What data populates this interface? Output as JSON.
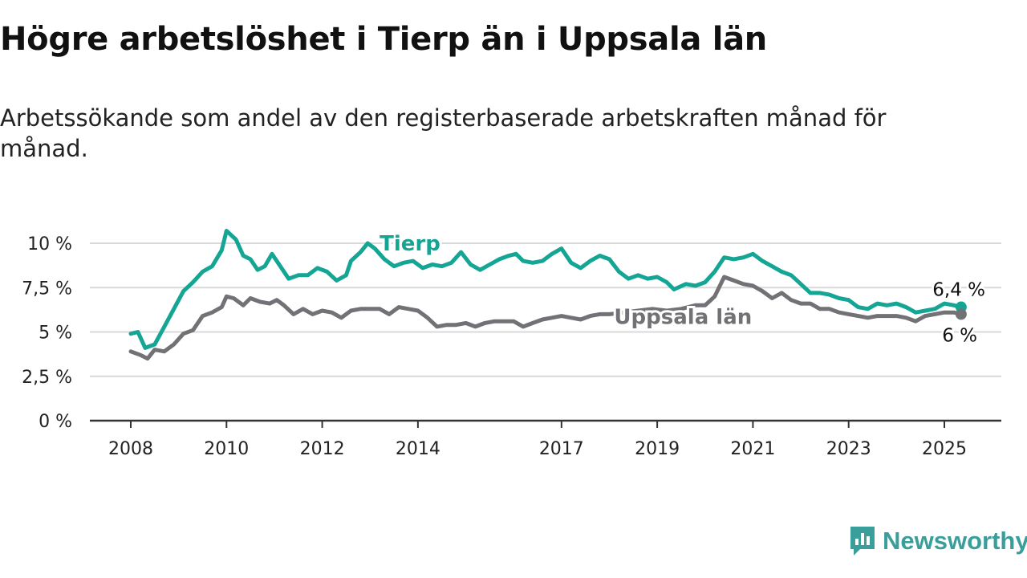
{
  "title": "Högre arbetslöshet i Tierp än i Uppsala län",
  "subtitle": "Arbetssökande som andel av den registerbaserade arbetskraften månad för månad.",
  "brand": {
    "name": "Newsworthy",
    "logo_icon": "bar-chart-speech-bubble-icon"
  },
  "colors": {
    "tierp": "#14a595",
    "uppsala": "#727276",
    "grid": "#d9d9d9",
    "axis": "#333333",
    "brand": "#3a9e9a"
  },
  "chart_data": {
    "type": "line",
    "xlim": [
      2008,
      2025.6
    ],
    "ylim": [
      0,
      11
    ],
    "x_ticks": [
      {
        "value": 2008,
        "label": "2008"
      },
      {
        "value": 2010,
        "label": "2010"
      },
      {
        "value": 2012,
        "label": "2012"
      },
      {
        "value": 2014,
        "label": "2014"
      },
      {
        "value": 2017,
        "label": "2017"
      },
      {
        "value": 2019,
        "label": "2019"
      },
      {
        "value": 2021,
        "label": "2021"
      },
      {
        "value": 2023,
        "label": "2023"
      },
      {
        "value": 2025,
        "label": "2025"
      }
    ],
    "y_ticks": [
      {
        "value": 0,
        "label": "0 %"
      },
      {
        "value": 2.5,
        "label": "2,5 %"
      },
      {
        "value": 5,
        "label": "5 %"
      },
      {
        "value": 7.5,
        "label": "7,5 %"
      },
      {
        "value": 10,
        "label": "10 %"
      }
    ],
    "grid": true,
    "series": [
      {
        "name": "Tierp",
        "end_label": "6,4 %",
        "points": [
          [
            2008.0,
            4.9
          ],
          [
            2008.15,
            5.0
          ],
          [
            2008.3,
            4.1
          ],
          [
            2008.5,
            4.3
          ],
          [
            2008.7,
            5.3
          ],
          [
            2008.9,
            6.3
          ],
          [
            2009.1,
            7.3
          ],
          [
            2009.3,
            7.8
          ],
          [
            2009.5,
            8.4
          ],
          [
            2009.7,
            8.7
          ],
          [
            2009.9,
            9.6
          ],
          [
            2010.0,
            10.7
          ],
          [
            2010.2,
            10.2
          ],
          [
            2010.35,
            9.3
          ],
          [
            2010.5,
            9.1
          ],
          [
            2010.65,
            8.5
          ],
          [
            2010.8,
            8.7
          ],
          [
            2010.95,
            9.4
          ],
          [
            2011.1,
            8.8
          ],
          [
            2011.3,
            8.0
          ],
          [
            2011.5,
            8.2
          ],
          [
            2011.7,
            8.2
          ],
          [
            2011.9,
            8.6
          ],
          [
            2012.1,
            8.4
          ],
          [
            2012.3,
            7.9
          ],
          [
            2012.5,
            8.2
          ],
          [
            2012.6,
            9.0
          ],
          [
            2012.8,
            9.5
          ],
          [
            2012.95,
            10.0
          ],
          [
            2013.1,
            9.7
          ],
          [
            2013.3,
            9.1
          ],
          [
            2013.5,
            8.7
          ],
          [
            2013.7,
            8.9
          ],
          [
            2013.9,
            9.0
          ],
          [
            2014.1,
            8.6
          ],
          [
            2014.3,
            8.8
          ],
          [
            2014.5,
            8.7
          ],
          [
            2014.7,
            8.9
          ],
          [
            2014.9,
            9.5
          ],
          [
            2015.1,
            8.8
          ],
          [
            2015.3,
            8.5
          ],
          [
            2015.5,
            8.8
          ],
          [
            2015.7,
            9.1
          ],
          [
            2015.9,
            9.3
          ],
          [
            2016.05,
            9.4
          ],
          [
            2016.2,
            9.0
          ],
          [
            2016.4,
            8.9
          ],
          [
            2016.6,
            9.0
          ],
          [
            2016.8,
            9.4
          ],
          [
            2017.0,
            9.7
          ],
          [
            2017.2,
            8.9
          ],
          [
            2017.4,
            8.6
          ],
          [
            2017.6,
            9.0
          ],
          [
            2017.8,
            9.3
          ],
          [
            2018.0,
            9.1
          ],
          [
            2018.2,
            8.4
          ],
          [
            2018.4,
            8.0
          ],
          [
            2018.6,
            8.2
          ],
          [
            2018.8,
            8.0
          ],
          [
            2019.0,
            8.1
          ],
          [
            2019.2,
            7.8
          ],
          [
            2019.35,
            7.4
          ],
          [
            2019.6,
            7.7
          ],
          [
            2019.8,
            7.6
          ],
          [
            2020.0,
            7.8
          ],
          [
            2020.2,
            8.4
          ],
          [
            2020.4,
            9.2
          ],
          [
            2020.6,
            9.1
          ],
          [
            2020.8,
            9.2
          ],
          [
            2021.0,
            9.4
          ],
          [
            2021.2,
            9.0
          ],
          [
            2021.4,
            8.7
          ],
          [
            2021.6,
            8.4
          ],
          [
            2021.8,
            8.2
          ],
          [
            2022.0,
            7.7
          ],
          [
            2022.2,
            7.2
          ],
          [
            2022.4,
            7.2
          ],
          [
            2022.6,
            7.1
          ],
          [
            2022.8,
            6.9
          ],
          [
            2023.0,
            6.8
          ],
          [
            2023.2,
            6.4
          ],
          [
            2023.4,
            6.3
          ],
          [
            2023.6,
            6.6
          ],
          [
            2023.8,
            6.5
          ],
          [
            2024.0,
            6.6
          ],
          [
            2024.2,
            6.4
          ],
          [
            2024.4,
            6.1
          ],
          [
            2024.6,
            6.2
          ],
          [
            2024.8,
            6.3
          ],
          [
            2025.0,
            6.6
          ],
          [
            2025.2,
            6.5
          ],
          [
            2025.35,
            6.4
          ]
        ]
      },
      {
        "name": "Uppsala län",
        "end_label": "6 %",
        "points": [
          [
            2008.0,
            3.9
          ],
          [
            2008.2,
            3.7
          ],
          [
            2008.35,
            3.5
          ],
          [
            2008.5,
            4.0
          ],
          [
            2008.7,
            3.9
          ],
          [
            2008.9,
            4.3
          ],
          [
            2009.1,
            4.9
          ],
          [
            2009.3,
            5.1
          ],
          [
            2009.5,
            5.9
          ],
          [
            2009.7,
            6.1
          ],
          [
            2009.9,
            6.4
          ],
          [
            2010.0,
            7.0
          ],
          [
            2010.15,
            6.9
          ],
          [
            2010.35,
            6.5
          ],
          [
            2010.5,
            6.9
          ],
          [
            2010.7,
            6.7
          ],
          [
            2010.9,
            6.6
          ],
          [
            2011.05,
            6.8
          ],
          [
            2011.2,
            6.5
          ],
          [
            2011.4,
            6.0
          ],
          [
            2011.6,
            6.3
          ],
          [
            2011.8,
            6.0
          ],
          [
            2012.0,
            6.2
          ],
          [
            2012.2,
            6.1
          ],
          [
            2012.4,
            5.8
          ],
          [
            2012.6,
            6.2
          ],
          [
            2012.8,
            6.3
          ],
          [
            2013.0,
            6.3
          ],
          [
            2013.2,
            6.3
          ],
          [
            2013.4,
            6.0
          ],
          [
            2013.6,
            6.4
          ],
          [
            2013.8,
            6.3
          ],
          [
            2014.0,
            6.2
          ],
          [
            2014.2,
            5.8
          ],
          [
            2014.4,
            5.3
          ],
          [
            2014.6,
            5.4
          ],
          [
            2014.8,
            5.4
          ],
          [
            2015.0,
            5.5
          ],
          [
            2015.2,
            5.3
          ],
          [
            2015.4,
            5.5
          ],
          [
            2015.6,
            5.6
          ],
          [
            2015.8,
            5.6
          ],
          [
            2016.0,
            5.6
          ],
          [
            2016.2,
            5.3
          ],
          [
            2016.4,
            5.5
          ],
          [
            2016.6,
            5.7
          ],
          [
            2016.8,
            5.8
          ],
          [
            2017.0,
            5.9
          ],
          [
            2017.2,
            5.8
          ],
          [
            2017.4,
            5.7
          ],
          [
            2017.6,
            5.9
          ],
          [
            2017.8,
            6.0
          ],
          [
            2018.0,
            6.0
          ],
          [
            2018.3,
            6.1
          ],
          [
            2018.6,
            6.2
          ],
          [
            2018.9,
            6.3
          ],
          [
            2019.2,
            6.2
          ],
          [
            2019.5,
            6.3
          ],
          [
            2019.8,
            6.5
          ],
          [
            2020.0,
            6.5
          ],
          [
            2020.2,
            7.0
          ],
          [
            2020.4,
            8.1
          ],
          [
            2020.6,
            7.9
          ],
          [
            2020.8,
            7.7
          ],
          [
            2021.0,
            7.6
          ],
          [
            2021.2,
            7.3
          ],
          [
            2021.4,
            6.9
          ],
          [
            2021.6,
            7.2
          ],
          [
            2021.8,
            6.8
          ],
          [
            2022.0,
            6.6
          ],
          [
            2022.2,
            6.6
          ],
          [
            2022.4,
            6.3
          ],
          [
            2022.6,
            6.3
          ],
          [
            2022.8,
            6.1
          ],
          [
            2023.0,
            6.0
          ],
          [
            2023.2,
            5.9
          ],
          [
            2023.4,
            5.8
          ],
          [
            2023.6,
            5.9
          ],
          [
            2023.8,
            5.9
          ],
          [
            2024.0,
            5.9
          ],
          [
            2024.2,
            5.8
          ],
          [
            2024.4,
            5.6
          ],
          [
            2024.6,
            5.9
          ],
          [
            2024.8,
            6.0
          ],
          [
            2025.0,
            6.1
          ],
          [
            2025.2,
            6.1
          ],
          [
            2025.35,
            6.0
          ]
        ]
      }
    ]
  }
}
